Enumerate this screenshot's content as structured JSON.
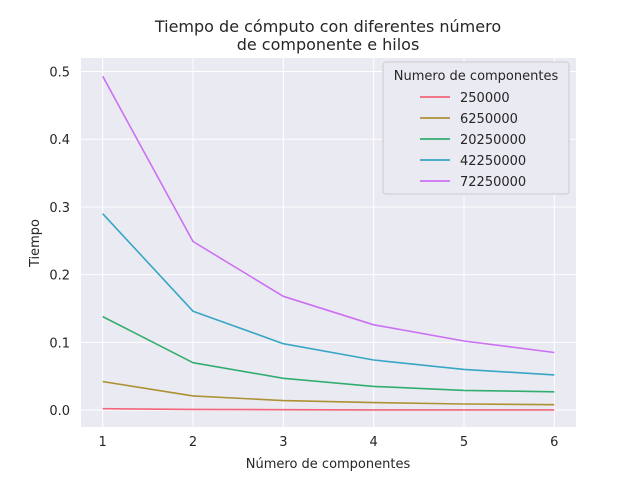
{
  "chart_data": {
    "type": "line",
    "title_lines": [
      "Tiempo de cómputo con diferentes número",
      "de componente e hilos"
    ],
    "xlabel": "Número de componentes",
    "ylabel": "Tiempo",
    "x": [
      1,
      2,
      3,
      4,
      5,
      6
    ],
    "xlim": [
      0.76,
      6.24
    ],
    "ylim": [
      -0.025,
      0.52
    ],
    "yticks": [
      0.0,
      0.1,
      0.2,
      0.3,
      0.4,
      0.5
    ],
    "ytick_labels": [
      "0.0",
      "0.1",
      "0.2",
      "0.3",
      "0.4",
      "0.5"
    ],
    "xtick_labels": [
      "1",
      "2",
      "3",
      "4",
      "5",
      "6"
    ],
    "grid": true,
    "background": "#eaeaf2",
    "legend": {
      "title": "Numero de componentes",
      "placement": "top-right"
    },
    "series": [
      {
        "name": "250000",
        "color": "#f2657b",
        "values": [
          0.002,
          0.001,
          0.0005,
          0.0003,
          0.0003,
          0.0002
        ]
      },
      {
        "name": "6250000",
        "color": "#ad9234",
        "values": [
          0.042,
          0.021,
          0.014,
          0.011,
          0.009,
          0.008
        ]
      },
      {
        "name": "20250000",
        "color": "#33ad6f",
        "values": [
          0.138,
          0.07,
          0.047,
          0.035,
          0.029,
          0.027
        ]
      },
      {
        "name": "42250000",
        "color": "#38a6c5",
        "values": [
          0.29,
          0.146,
          0.098,
          0.074,
          0.06,
          0.052
        ]
      },
      {
        "name": "72250000",
        "color": "#cc70f2",
        "values": [
          0.493,
          0.249,
          0.168,
          0.126,
          0.102,
          0.085
        ]
      }
    ]
  }
}
